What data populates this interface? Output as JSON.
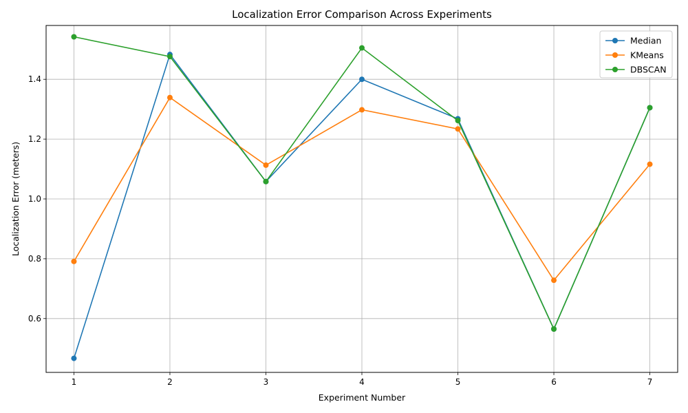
{
  "chart_data": {
    "type": "line",
    "title": "Localization Error Comparison Across Experiments",
    "xlabel": "Experiment Number",
    "ylabel": "Localization Error (meters)",
    "x": [
      1,
      2,
      3,
      4,
      5,
      6,
      7
    ],
    "x_ticks": [
      "1",
      "2",
      "3",
      "4",
      "5",
      "6",
      "7"
    ],
    "y_ticks": [
      "0.6",
      "0.8",
      "1.0",
      "1.2",
      "1.4"
    ],
    "y_tick_values": [
      0.6,
      0.8,
      1.0,
      1.2,
      1.4
    ],
    "xlim": [
      0.71,
      7.29
    ],
    "ylim": [
      0.42,
      1.58
    ],
    "grid": true,
    "legend_position": "top-right",
    "series": [
      {
        "name": "Median",
        "color": "#1f77b4",
        "values": [
          0.467,
          1.483,
          1.058,
          1.4,
          1.268,
          0.565,
          1.305
        ]
      },
      {
        "name": "KMeans",
        "color": "#ff7f0e",
        "values": [
          0.791,
          1.339,
          1.113,
          1.298,
          1.234,
          0.728,
          1.116
        ]
      },
      {
        "name": "DBSCAN",
        "color": "#2ca02c",
        "values": [
          1.542,
          1.476,
          1.058,
          1.505,
          1.262,
          0.565,
          1.305
        ]
      }
    ]
  }
}
